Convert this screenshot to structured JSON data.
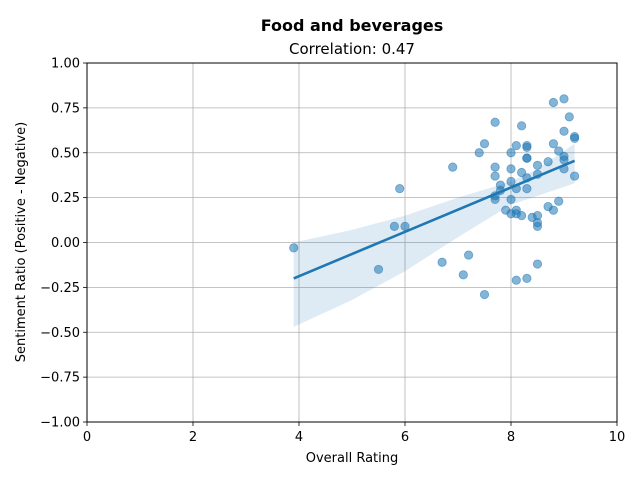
{
  "chart_data": {
    "type": "scatter",
    "title": "Food and beverages",
    "subtitle": "Correlation: 0.47",
    "xlabel": "Overall Rating",
    "ylabel": "Sentiment Ratio (Positive - Negative)",
    "xlim": [
      0,
      10
    ],
    "ylim": [
      -1.0,
      1.0
    ],
    "xticks": [
      "0",
      "2",
      "4",
      "6",
      "8",
      "10"
    ],
    "yticks": [
      "−1.00",
      "−0.75",
      "−0.50",
      "−0.25",
      "0.00",
      "0.25",
      "0.50",
      "0.75",
      "1.00"
    ],
    "grid": true,
    "point_color": "#1f77b4",
    "points": [
      {
        "x": 3.9,
        "y": -0.03
      },
      {
        "x": 5.5,
        "y": -0.15
      },
      {
        "x": 5.8,
        "y": 0.09
      },
      {
        "x": 5.9,
        "y": 0.3
      },
      {
        "x": 6.0,
        "y": 0.09
      },
      {
        "x": 6.7,
        "y": -0.11
      },
      {
        "x": 6.9,
        "y": 0.42
      },
      {
        "x": 7.1,
        "y": -0.18
      },
      {
        "x": 7.2,
        "y": -0.07
      },
      {
        "x": 7.4,
        "y": 0.5
      },
      {
        "x": 7.5,
        "y": 0.55
      },
      {
        "x": 7.5,
        "y": -0.29
      },
      {
        "x": 7.7,
        "y": 0.67
      },
      {
        "x": 7.7,
        "y": 0.42
      },
      {
        "x": 7.7,
        "y": 0.37
      },
      {
        "x": 7.7,
        "y": 0.26
      },
      {
        "x": 7.7,
        "y": 0.24
      },
      {
        "x": 7.8,
        "y": 0.32
      },
      {
        "x": 7.8,
        "y": 0.29
      },
      {
        "x": 7.9,
        "y": 0.18
      },
      {
        "x": 8.0,
        "y": 0.5
      },
      {
        "x": 8.0,
        "y": 0.41
      },
      {
        "x": 8.0,
        "y": 0.34
      },
      {
        "x": 8.0,
        "y": 0.24
      },
      {
        "x": 8.0,
        "y": 0.16
      },
      {
        "x": 8.1,
        "y": 0.54
      },
      {
        "x": 8.1,
        "y": 0.3
      },
      {
        "x": 8.1,
        "y": 0.18
      },
      {
        "x": 8.1,
        "y": 0.16
      },
      {
        "x": 8.1,
        "y": -0.21
      },
      {
        "x": 8.2,
        "y": 0.65
      },
      {
        "x": 8.2,
        "y": 0.39
      },
      {
        "x": 8.2,
        "y": 0.15
      },
      {
        "x": 8.3,
        "y": 0.54
      },
      {
        "x": 8.3,
        "y": 0.53
      },
      {
        "x": 8.3,
        "y": 0.47
      },
      {
        "x": 8.3,
        "y": 0.47
      },
      {
        "x": 8.3,
        "y": 0.36
      },
      {
        "x": 8.3,
        "y": 0.3
      },
      {
        "x": 8.3,
        "y": -0.2
      },
      {
        "x": 8.4,
        "y": 0.14
      },
      {
        "x": 8.5,
        "y": 0.43
      },
      {
        "x": 8.5,
        "y": 0.38
      },
      {
        "x": 8.5,
        "y": 0.15
      },
      {
        "x": 8.5,
        "y": 0.11
      },
      {
        "x": 8.5,
        "y": 0.09
      },
      {
        "x": 8.5,
        "y": -0.12
      },
      {
        "x": 8.7,
        "y": 0.45
      },
      {
        "x": 8.7,
        "y": 0.2
      },
      {
        "x": 8.8,
        "y": 0.78
      },
      {
        "x": 8.8,
        "y": 0.55
      },
      {
        "x": 8.8,
        "y": 0.18
      },
      {
        "x": 8.9,
        "y": 0.51
      },
      {
        "x": 8.9,
        "y": 0.23
      },
      {
        "x": 9.0,
        "y": 0.8
      },
      {
        "x": 9.0,
        "y": 0.62
      },
      {
        "x": 9.0,
        "y": 0.48
      },
      {
        "x": 9.0,
        "y": 0.46
      },
      {
        "x": 9.0,
        "y": 0.41
      },
      {
        "x": 9.1,
        "y": 0.7
      },
      {
        "x": 9.2,
        "y": 0.59
      },
      {
        "x": 9.2,
        "y": 0.58
      },
      {
        "x": 9.2,
        "y": 0.37
      }
    ],
    "regression": {
      "x": [
        3.9,
        9.2
      ],
      "y": [
        -0.2,
        0.455
      ]
    },
    "confidence_band": {
      "x": [
        3.9,
        5.0,
        6.0,
        7.0,
        8.0,
        8.5,
        9.2
      ],
      "upper": [
        0.0,
        0.07,
        0.15,
        0.25,
        0.34,
        0.41,
        0.55
      ],
      "lower": [
        -0.47,
        -0.32,
        -0.16,
        0.03,
        0.21,
        0.26,
        0.33
      ]
    }
  }
}
